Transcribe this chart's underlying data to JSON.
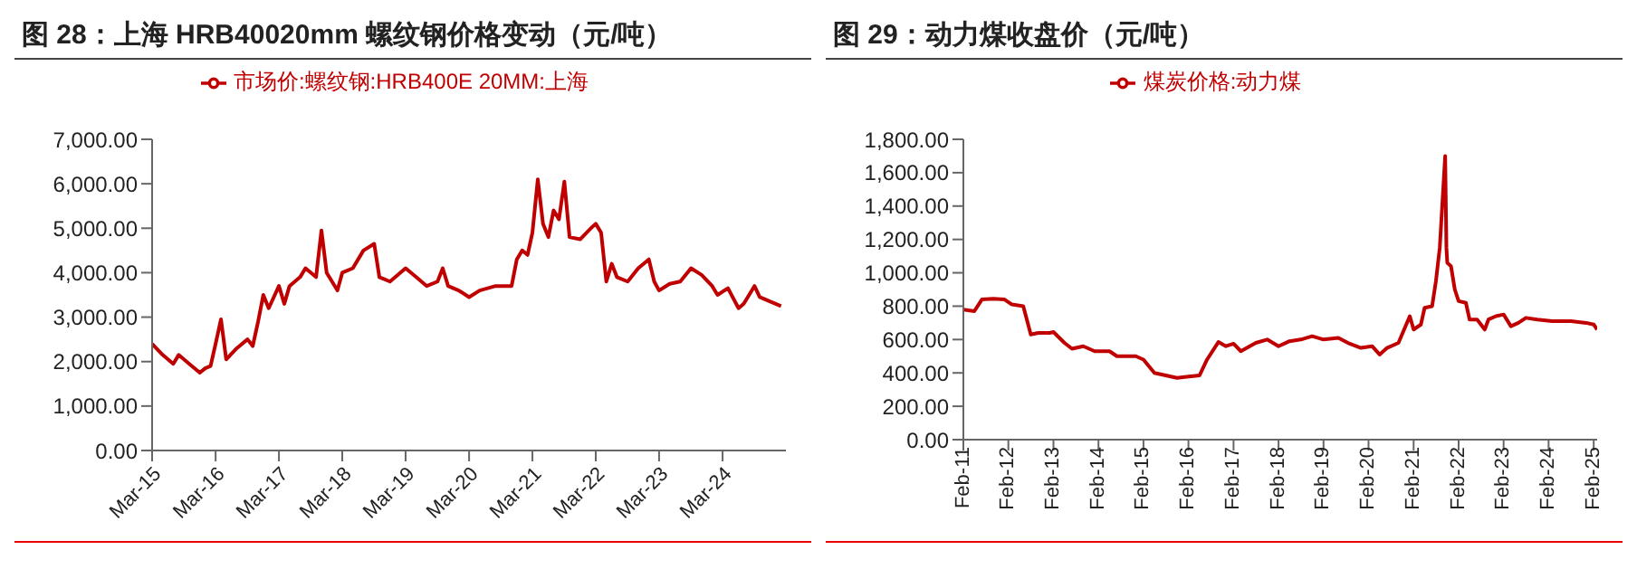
{
  "chart_data": [
    {
      "type": "line",
      "title": "图 28：上海 HRB40020mm 螺纹钢价格变动（元/吨）",
      "legend": "top",
      "grid": false,
      "marker": "none",
      "line_style": "solid",
      "x": [
        "2015-03",
        "2015-05",
        "2015-07",
        "2015-08",
        "2015-10",
        "2015-12",
        "2016-01",
        "2016-02",
        "2016-03",
        "2016-04",
        "2016-05",
        "2016-07",
        "2016-09",
        "2016-10",
        "2016-11",
        "2016-12",
        "2017-01",
        "2017-03",
        "2017-04",
        "2017-05",
        "2017-07",
        "2017-08",
        "2017-10",
        "2017-11",
        "2017-12",
        "2018-01",
        "2018-02",
        "2018-03",
        "2018-05",
        "2018-07",
        "2018-09",
        "2018-10",
        "2018-12",
        "2019-03",
        "2019-05",
        "2019-07",
        "2019-09",
        "2019-10",
        "2019-11",
        "2020-01",
        "2020-03",
        "2020-05",
        "2020-08",
        "2020-11",
        "2020-12",
        "2021-01",
        "2021-02",
        "2021-03",
        "2021-04",
        "2021-05",
        "2021-06",
        "2021-07",
        "2021-08",
        "2021-09",
        "2021-10",
        "2021-12",
        "2022-02",
        "2022-03",
        "2022-04",
        "2022-05",
        "2022-06",
        "2022-07",
        "2022-09",
        "2022-11",
        "2023-01",
        "2023-02",
        "2023-03",
        "2023-05",
        "2023-07",
        "2023-09",
        "2023-11",
        "2024-01",
        "2024-02",
        "2024-04",
        "2024-06",
        "2024-07",
        "2024-09",
        "2024-10",
        "2024-12",
        "2025-02"
      ],
      "series": [
        {
          "name": "市场价:螺纹钢:HRB400E 20MM:上海",
          "color": "#c00000",
          "values": [
            2400,
            2150,
            1950,
            2150,
            1950,
            1750,
            1850,
            1900,
            2400,
            2950,
            2050,
            2300,
            2500,
            2350,
            2900,
            3500,
            3200,
            3700,
            3300,
            3700,
            3900,
            4100,
            3900,
            4950,
            4000,
            3800,
            3600,
            4000,
            4100,
            4500,
            4650,
            3900,
            3800,
            4100,
            3900,
            3700,
            3800,
            4100,
            3700,
            3600,
            3450,
            3600,
            3700,
            3700,
            4300,
            4500,
            4400,
            4900,
            6100,
            5100,
            4800,
            5400,
            5200,
            6050,
            4800,
            4750,
            5000,
            5100,
            4900,
            3800,
            4200,
            3900,
            3800,
            4100,
            4300,
            3800,
            3600,
            3750,
            3800,
            4100,
            3950,
            3700,
            3500,
            3650,
            3200,
            3300,
            3700,
            3450,
            3350,
            3250
          ]
        }
      ],
      "xlim": [
        "2015-03",
        "2025-03"
      ],
      "xticks": [
        {
          "value": "2015-03",
          "label": "Mar-15"
        },
        {
          "value": "2016-03",
          "label": "Mar-16"
        },
        {
          "value": "2017-03",
          "label": "Mar-17"
        },
        {
          "value": "2018-03",
          "label": "Mar-18"
        },
        {
          "value": "2019-03",
          "label": "Mar-19"
        },
        {
          "value": "2020-03",
          "label": "Mar-20"
        },
        {
          "value": "2021-03",
          "label": "Mar-21"
        },
        {
          "value": "2022-03",
          "label": "Mar-22"
        },
        {
          "value": "2023-03",
          "label": "Mar-23"
        },
        {
          "value": "2024-03",
          "label": "Mar-24"
        }
      ],
      "ylim": [
        0,
        7000
      ],
      "yticks": [
        {
          "value": 0,
          "label": "0.00"
        },
        {
          "value": 1000,
          "label": "1,000.00"
        },
        {
          "value": 2000,
          "label": "2,000.00"
        },
        {
          "value": 3000,
          "label": "3,000.00"
        },
        {
          "value": 4000,
          "label": "4,000.00"
        },
        {
          "value": 5000,
          "label": "5,000.00"
        },
        {
          "value": 6000,
          "label": "6,000.00"
        },
        {
          "value": 7000,
          "label": "7,000.00"
        }
      ]
    },
    {
      "type": "line",
      "title": "图 29：动力煤收盘价（元/吨）",
      "legend": "top",
      "grid": false,
      "marker": "none",
      "line_style": "solid",
      "x": [
        "2011-02",
        "2011-05",
        "2011-07",
        "2011-10",
        "2012-01",
        "2012-03",
        "2012-06",
        "2012-08",
        "2012-10",
        "2013-01",
        "2013-02",
        "2013-05",
        "2013-07",
        "2013-10",
        "2014-01",
        "2014-05",
        "2014-07",
        "2014-12",
        "2015-02",
        "2015-05",
        "2015-08",
        "2015-11",
        "2016-01",
        "2016-05",
        "2016-07",
        "2016-10",
        "2016-12",
        "2017-02",
        "2017-04",
        "2017-08",
        "2017-11",
        "2018-02",
        "2018-05",
        "2018-08",
        "2018-11",
        "2019-02",
        "2019-06",
        "2019-09",
        "2019-12",
        "2020-03",
        "2020-05",
        "2020-07",
        "2020-10",
        "2021-01",
        "2021-02",
        "2021-04",
        "2021-05",
        "2021-07",
        "2021-08",
        "2021-09",
        "2021-10-15",
        "2021-10-25",
        "2021-11",
        "2021-12",
        "2022-01",
        "2022-02",
        "2022-04",
        "2022-05",
        "2022-07",
        "2022-09",
        "2022-10",
        "2022-12",
        "2023-02",
        "2023-04",
        "2023-06",
        "2023-08",
        "2023-11",
        "2024-03",
        "2024-08",
        "2024-12",
        "2025-02",
        "2025-03"
      ],
      "series": [
        {
          "name": "煤炭价格:动力煤",
          "color": "#c00000",
          "values": [
            780,
            770,
            840,
            845,
            840,
            810,
            800,
            630,
            640,
            640,
            645,
            580,
            545,
            560,
            530,
            530,
            500,
            500,
            480,
            400,
            385,
            370,
            375,
            385,
            480,
            585,
            560,
            575,
            530,
            580,
            600,
            560,
            590,
            600,
            620,
            600,
            610,
            575,
            550,
            560,
            510,
            550,
            580,
            740,
            660,
            690,
            790,
            800,
            950,
            1150,
            1700,
            1150,
            1060,
            1040,
            900,
            830,
            820,
            720,
            720,
            660,
            720,
            740,
            750,
            680,
            700,
            730,
            720,
            710,
            710,
            700,
            690,
            660
          ]
        }
      ],
      "xlim": [
        "2011-02",
        "2025-03"
      ],
      "xticks": [
        {
          "value": "2011-02",
          "label": "Feb-11"
        },
        {
          "value": "2012-02",
          "label": "Feb-12"
        },
        {
          "value": "2013-02",
          "label": "Feb-13"
        },
        {
          "value": "2014-02",
          "label": "Feb-14"
        },
        {
          "value": "2015-02",
          "label": "Feb-15"
        },
        {
          "value": "2016-02",
          "label": "Feb-16"
        },
        {
          "value": "2017-02",
          "label": "Feb-17"
        },
        {
          "value": "2018-02",
          "label": "Feb-18"
        },
        {
          "value": "2019-02",
          "label": "Feb-19"
        },
        {
          "value": "2020-02",
          "label": "Feb-20"
        },
        {
          "value": "2021-02",
          "label": "Feb-21"
        },
        {
          "value": "2022-02",
          "label": "Feb-22"
        },
        {
          "value": "2023-02",
          "label": "Feb-23"
        },
        {
          "value": "2024-02",
          "label": "Feb-24"
        },
        {
          "value": "2025-02",
          "label": "Feb-25"
        }
      ],
      "ylim": [
        0,
        1800
      ],
      "yticks": [
        {
          "value": 0,
          "label": "0.00"
        },
        {
          "value": 200,
          "label": "200.00"
        },
        {
          "value": 400,
          "label": "400.00"
        },
        {
          "value": 600,
          "label": "600.00"
        },
        {
          "value": 800,
          "label": "800.00"
        },
        {
          "value": 1000,
          "label": "1,000.00"
        },
        {
          "value": 1200,
          "label": "1,200.00"
        },
        {
          "value": 1400,
          "label": "1,400.00"
        },
        {
          "value": 1600,
          "label": "1,600.00"
        },
        {
          "value": 1800,
          "label": "1,800.00"
        }
      ]
    }
  ]
}
